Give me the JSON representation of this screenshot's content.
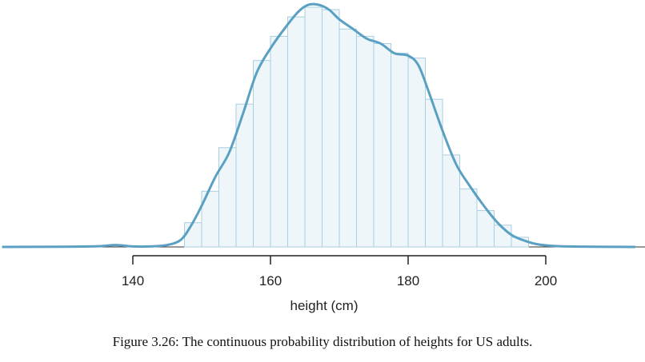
{
  "caption": "Figure 3.26: The continuous probability distribution of heights for US adults.",
  "colors": {
    "curve": "#5aa0c2",
    "bar_fill": "#eef6fa",
    "bar_stroke": "#a9cfe0",
    "axis": "#222222"
  },
  "chart_data": {
    "type": "bar",
    "title": "",
    "xlabel": "height (cm)",
    "ylabel": "",
    "xlim": [
      121,
      213
    ],
    "xticks": [
      140,
      160,
      180,
      200
    ],
    "bin_width": 2.5,
    "bins": [
      {
        "start": 147.5,
        "value": 0.1
      },
      {
        "start": 150,
        "value": 0.23
      },
      {
        "start": 152.5,
        "value": 0.41
      },
      {
        "start": 155,
        "value": 0.59
      },
      {
        "start": 157.5,
        "value": 0.77
      },
      {
        "start": 160,
        "value": 0.87
      },
      {
        "start": 162.5,
        "value": 0.95
      },
      {
        "start": 165,
        "value": 0.99
      },
      {
        "start": 167.5,
        "value": 0.98
      },
      {
        "start": 170,
        "value": 0.9
      },
      {
        "start": 172.5,
        "value": 0.87
      },
      {
        "start": 175,
        "value": 0.84
      },
      {
        "start": 177.5,
        "value": 0.8
      },
      {
        "start": 180,
        "value": 0.78
      },
      {
        "start": 182.5,
        "value": 0.61
      },
      {
        "start": 185,
        "value": 0.38
      },
      {
        "start": 187.5,
        "value": 0.24
      },
      {
        "start": 190,
        "value": 0.15
      },
      {
        "start": 192.5,
        "value": 0.09
      },
      {
        "start": 195,
        "value": 0.04
      }
    ],
    "density_curve": [
      [
        121,
        0
      ],
      [
        130,
        0.001
      ],
      [
        135,
        0.003
      ],
      [
        137.5,
        0.008
      ],
      [
        140,
        0.002
      ],
      [
        142.5,
        0.002
      ],
      [
        145,
        0.008
      ],
      [
        147,
        0.03
      ],
      [
        148.5,
        0.09
      ],
      [
        150,
        0.17
      ],
      [
        152,
        0.29
      ],
      [
        154,
        0.39
      ],
      [
        156,
        0.55
      ],
      [
        158,
        0.72
      ],
      [
        160,
        0.82
      ],
      [
        162,
        0.9
      ],
      [
        164,
        0.97
      ],
      [
        165.5,
        1.0
      ],
      [
        167,
        1.0
      ],
      [
        168.5,
        0.98
      ],
      [
        170,
        0.94
      ],
      [
        172,
        0.9
      ],
      [
        174,
        0.86
      ],
      [
        176,
        0.84
      ],
      [
        178,
        0.8
      ],
      [
        180,
        0.79
      ],
      [
        181.5,
        0.75
      ],
      [
        183,
        0.64
      ],
      [
        185,
        0.48
      ],
      [
        187,
        0.34
      ],
      [
        189,
        0.25
      ],
      [
        191,
        0.17
      ],
      [
        193,
        0.1
      ],
      [
        195,
        0.05
      ],
      [
        197,
        0.025
      ],
      [
        199,
        0.01
      ],
      [
        202,
        0.003
      ],
      [
        207,
        0.001
      ],
      [
        213,
        0
      ]
    ]
  }
}
